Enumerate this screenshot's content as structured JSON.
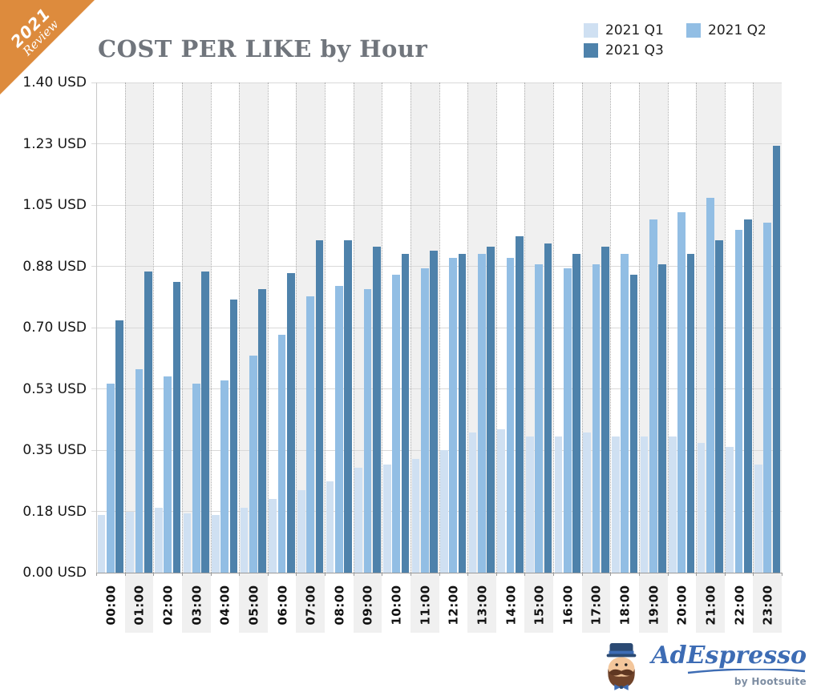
{
  "ribbon": {
    "line1": "2021",
    "line2": "Review",
    "color": "#dd8b3d"
  },
  "title": "COST PER LIKE by Hour",
  "logo": {
    "brand": "AdEspresso",
    "byline": "by Hootsuite"
  },
  "chart_data": {
    "type": "bar",
    "title": "COST PER LIKE by Hour",
    "categories": [
      "00:00",
      "01:00",
      "02:00",
      "03:00",
      "04:00",
      "05:00",
      "06:00",
      "07:00",
      "08:00",
      "09:00",
      "10:00",
      "11:00",
      "12:00",
      "13:00",
      "14:00",
      "15:00",
      "16:00",
      "17:00",
      "18:00",
      "19:00",
      "20:00",
      "21:00",
      "22:00",
      "23:00"
    ],
    "series": [
      {
        "name": "2021 Q1",
        "color": "#cfe0f2",
        "values": [
          0.165,
          0.175,
          0.185,
          0.17,
          0.165,
          0.185,
          0.21,
          0.235,
          0.26,
          0.3,
          0.31,
          0.325,
          0.35,
          0.4,
          0.41,
          0.39,
          0.39,
          0.4,
          0.39,
          0.39,
          0.39,
          0.37,
          0.36,
          0.31
        ]
      },
      {
        "name": "2021 Q2",
        "color": "#92bee4",
        "values": [
          0.54,
          0.58,
          0.56,
          0.54,
          0.55,
          0.62,
          0.68,
          0.79,
          0.82,
          0.81,
          0.85,
          0.87,
          0.9,
          0.91,
          0.9,
          0.88,
          0.87,
          0.88,
          0.91,
          1.01,
          1.03,
          1.07,
          0.98,
          1.0
        ]
      },
      {
        "name": "2021 Q3",
        "color": "#4e82ab",
        "values": [
          0.72,
          0.86,
          0.83,
          0.86,
          0.78,
          0.81,
          0.855,
          0.95,
          0.95,
          0.93,
          0.91,
          0.92,
          0.91,
          0.93,
          0.96,
          0.94,
          0.91,
          0.93,
          0.85,
          0.88,
          0.91,
          0.95,
          1.01,
          1.22
        ]
      }
    ],
    "ylim": [
      0,
      1.4
    ],
    "ytick_values": [
      0,
      0.175,
      0.35,
      0.525,
      0.7,
      0.875,
      1.05,
      1.225,
      1.4
    ],
    "ytick_labels": [
      "0.00 USD",
      "0.18 USD",
      "0.35 USD",
      "0.53 USD",
      "0.70 USD",
      "0.88 USD",
      "1.05 USD",
      "1.23 USD",
      "1.40 USD"
    ],
    "xlabel": "",
    "ylabel": "USD",
    "grid": true,
    "legend_position": "top-right",
    "odd_column_band_color": "#f0f0f0"
  }
}
